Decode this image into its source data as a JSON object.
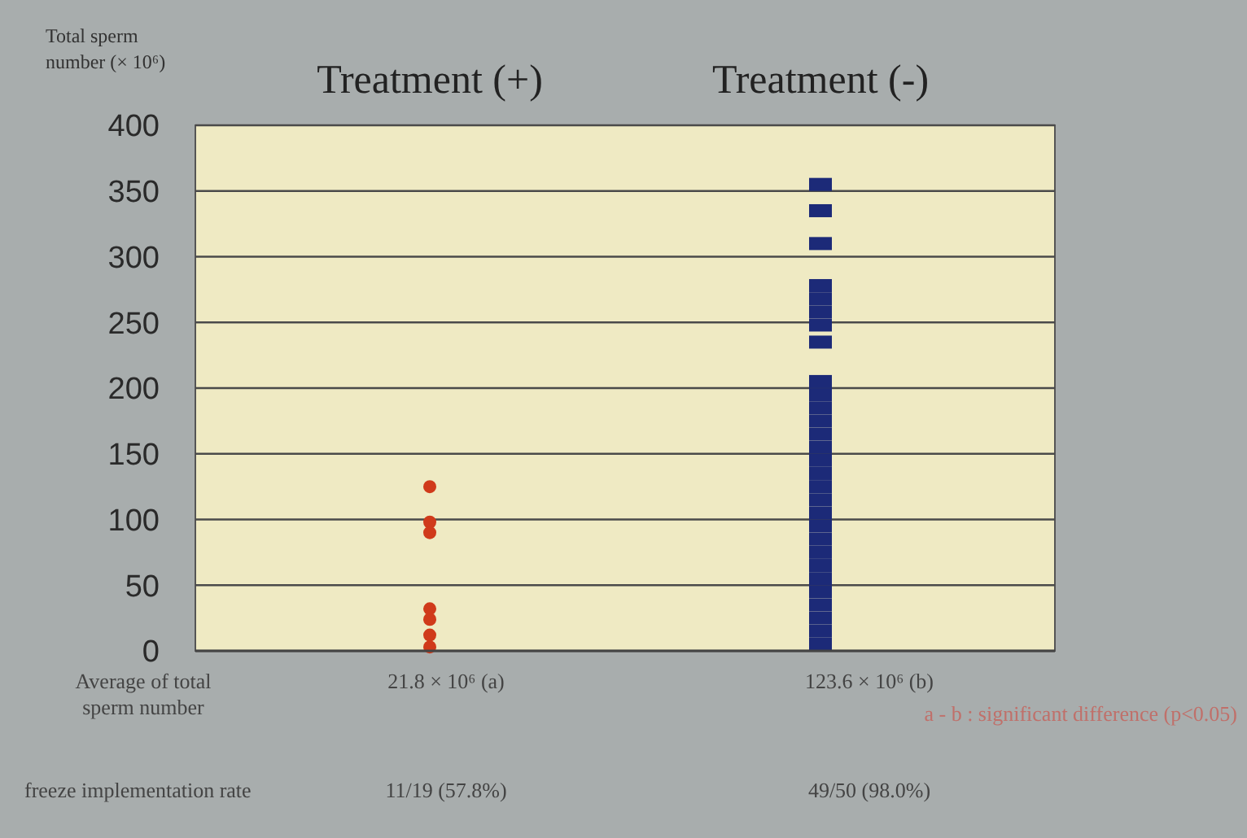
{
  "chart_data": {
    "type": "scatter",
    "ylabel": "Total sperm number (× 10⁶)",
    "categories": [
      "Treatment (+)",
      "Treatment (-)"
    ],
    "ylim": [
      0,
      400
    ],
    "yticks": [
      0,
      50,
      100,
      150,
      200,
      250,
      300,
      350,
      400
    ],
    "grid": "y",
    "series": [
      {
        "marker": "circle",
        "color": "#d03a1a",
        "x": [
          "Treatment (+)",
          "Treatment (+)",
          "Treatment (+)",
          "Treatment (+)",
          "Treatment (+)",
          "Treatment (+)",
          "Treatment (+)"
        ],
        "values": [
          125,
          98,
          90,
          32,
          24,
          12,
          3
        ]
      },
      {
        "marker": "square",
        "color": "#1c2a78",
        "x": [
          "Treatment (-)",
          "Treatment (-)",
          "Treatment (-)",
          "Treatment (-)",
          "Treatment (-)",
          "Treatment (-)",
          "Treatment (-)",
          "Treatment (-)",
          "Treatment (-)",
          "Treatment (-)",
          "Treatment (-)",
          "Treatment (-)",
          "Treatment (-)",
          "Treatment (-)",
          "Treatment (-)",
          "Treatment (-)",
          "Treatment (-)",
          "Treatment (-)",
          "Treatment (-)",
          "Treatment (-)",
          "Treatment (-)",
          "Treatment (-)",
          "Treatment (-)",
          "Treatment (-)",
          "Treatment (-)",
          "Treatment (-)",
          "Treatment (-)",
          "Treatment (-)",
          "Treatment (-)"
        ],
        "values": [
          355,
          335,
          310,
          278,
          268,
          258,
          248,
          235,
          205,
          195,
          185,
          175,
          165,
          155,
          145,
          135,
          125,
          115,
          105,
          95,
          85,
          75,
          65,
          55,
          45,
          35,
          25,
          15,
          5
        ]
      }
    ],
    "annotations": [
      "Average of total sperm number",
      "21.8 × 10⁶ (a)",
      "123.6 × 10⁶ (b)",
      "a - b : significant difference (p<0.05)",
      "freeze implementation rate",
      "11/19 (57.8%)",
      "49/50 (98.0%)"
    ]
  }
}
